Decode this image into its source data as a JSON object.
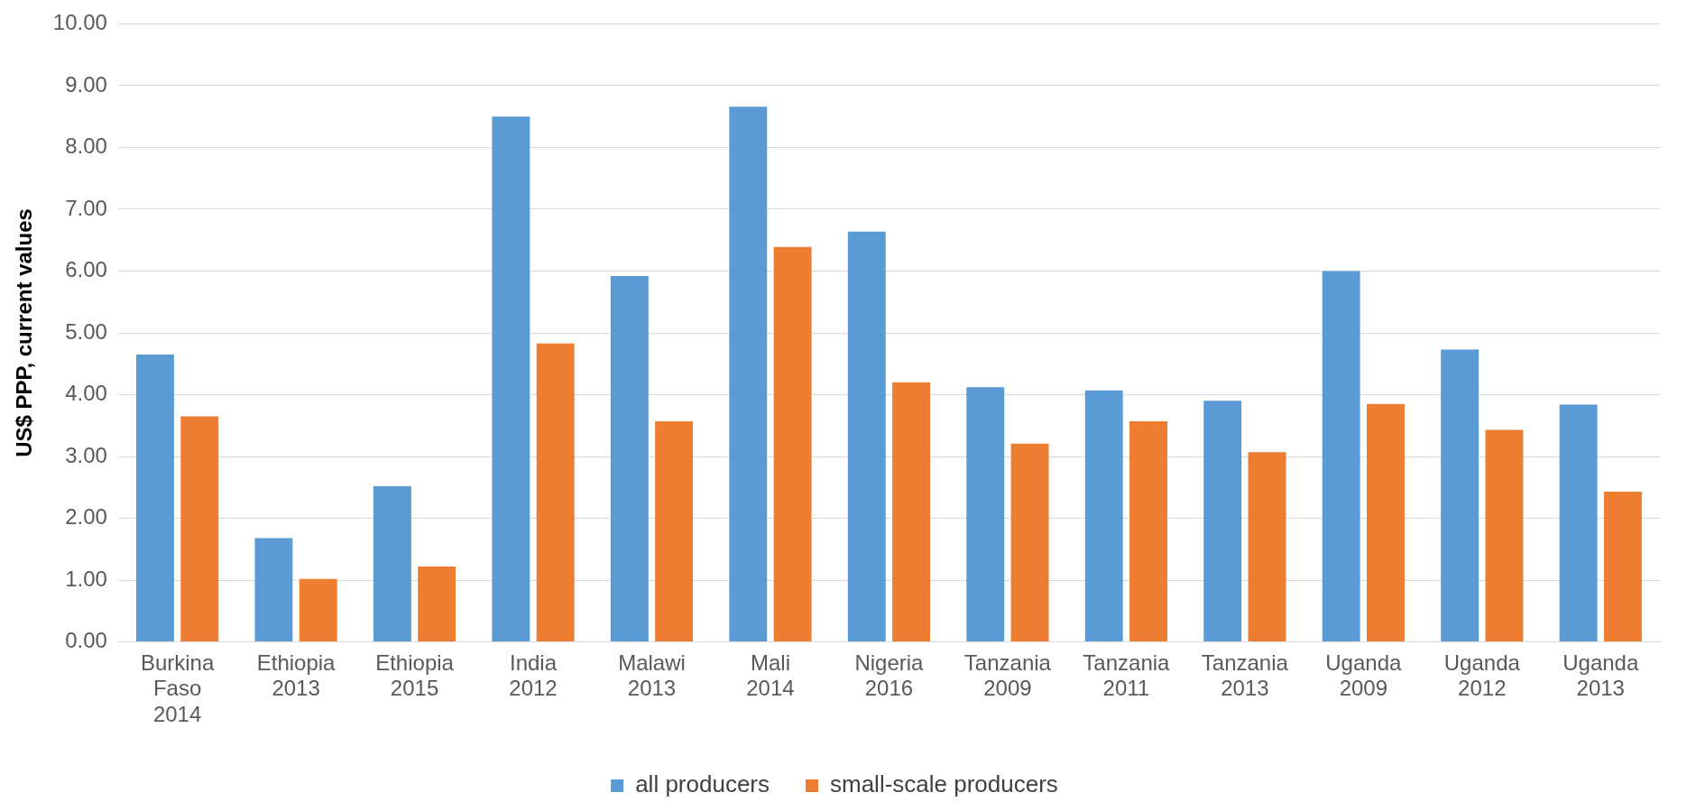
{
  "chart_data": {
    "type": "bar",
    "ylabel": "US$ PPP, current values",
    "categories": [
      "Burkina Faso 2014",
      "Ethiopia 2013",
      "Ethiopia 2015",
      "India 2012",
      "Malawi 2013",
      "Mali 2014",
      "Nigeria 2016",
      "Tanzania 2009",
      "Tanzania 2011",
      "Tanzania 2013",
      "Uganda 2009",
      "Uganda 2012",
      "Uganda 2013"
    ],
    "series": [
      {
        "name": "all producers",
        "color": "#5b9bd5",
        "values": [
          4.65,
          1.68,
          2.52,
          8.5,
          5.92,
          8.66,
          6.64,
          4.12,
          4.07,
          3.9,
          6.0,
          4.73,
          3.84
        ]
      },
      {
        "name": "small-scale producers",
        "color": "#ed7d31",
        "values": [
          3.65,
          1.02,
          1.22,
          4.83,
          3.57,
          6.39,
          4.2,
          3.21,
          3.57,
          3.07,
          3.85,
          3.43,
          2.43
        ]
      }
    ],
    "ylim": [
      0,
      10
    ],
    "yticks": [
      {
        "value": 0,
        "label": "0.00"
      },
      {
        "value": 1,
        "label": "1.00"
      },
      {
        "value": 2,
        "label": "2.00"
      },
      {
        "value": 3,
        "label": "3.00"
      },
      {
        "value": 4,
        "label": "4.00"
      },
      {
        "value": 5,
        "label": "5.00"
      },
      {
        "value": 6,
        "label": "6.00"
      },
      {
        "value": 7,
        "label": "7.00"
      },
      {
        "value": 8,
        "label": "8.00"
      },
      {
        "value": 9,
        "label": "9.00"
      },
      {
        "value": 10,
        "label": "10.00"
      }
    ],
    "grid": "y",
    "legend": "bottom"
  }
}
